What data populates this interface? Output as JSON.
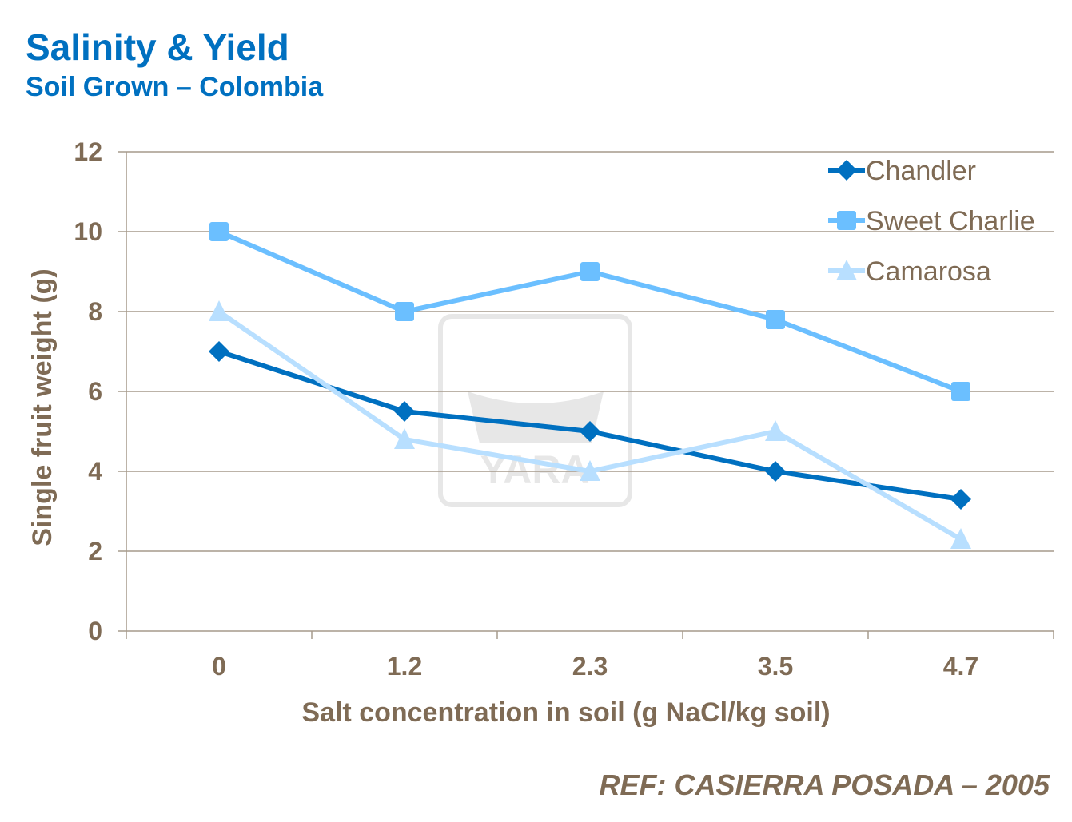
{
  "header": {
    "title": "Salinity & Yield",
    "subtitle": "Soil Grown – Colombia"
  },
  "reference": "REF: CASIERRA POSADA – 2005",
  "watermark": "YARA",
  "chart_data": {
    "type": "line",
    "xlabel": "Salt concentration in soil (g NaCl/kg soil)",
    "ylabel": "Single fruit weight (g)",
    "categories": [
      "0",
      "1.2",
      "2.3",
      "3.5",
      "4.7"
    ],
    "ylim": [
      0,
      12
    ],
    "yticks": [
      0,
      2,
      4,
      6,
      8,
      10,
      12
    ],
    "grid": true,
    "legend": "top-right",
    "series": [
      {
        "name": "Chandler",
        "values": [
          7,
          5.5,
          5,
          4,
          3.3
        ],
        "color": "#0070C0",
        "marker": "diamond"
      },
      {
        "name": "Sweet Charlie",
        "values": [
          10,
          8,
          9,
          7.8,
          6
        ],
        "color": "#6BBFFF",
        "marker": "square"
      },
      {
        "name": "Camarosa",
        "values": [
          8,
          4.8,
          4,
          5,
          2.3
        ],
        "color": "#B8DFFF",
        "marker": "triangle"
      }
    ]
  }
}
